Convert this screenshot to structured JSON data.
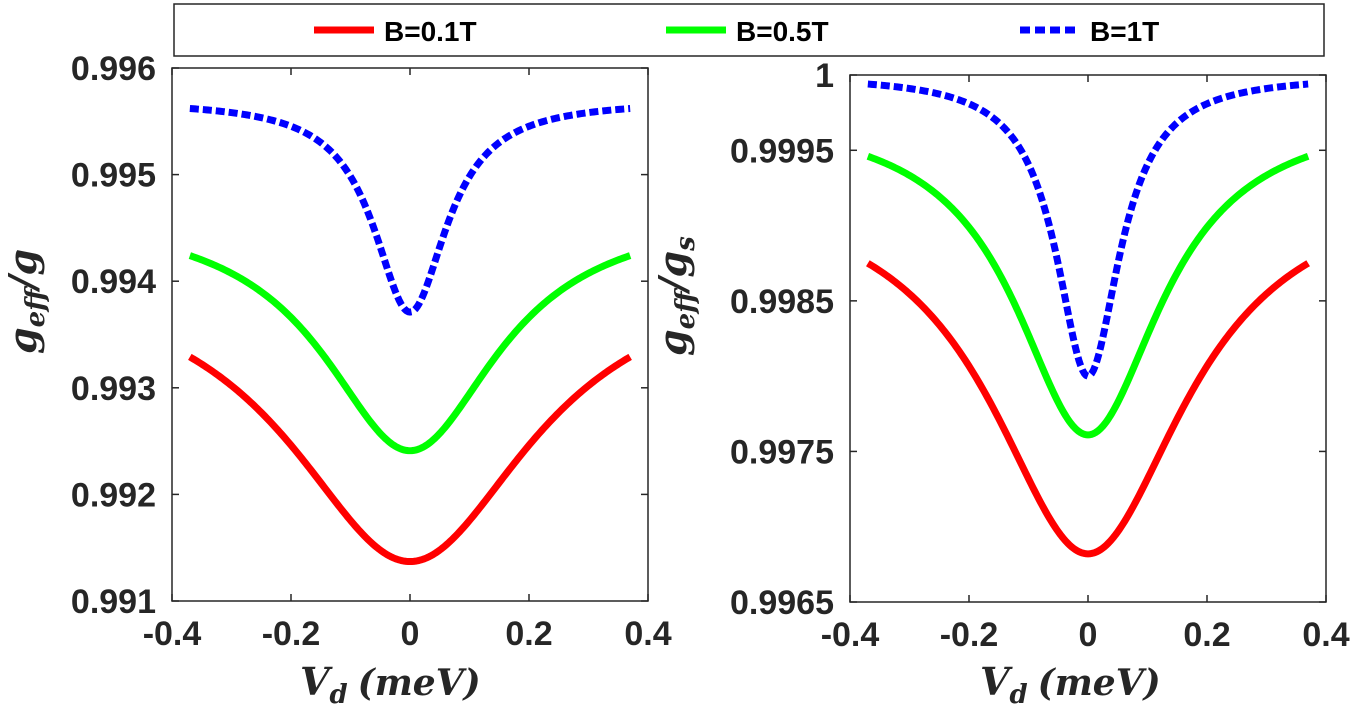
{
  "chart_data": [
    {
      "type": "line",
      "title": "",
      "xlabel": "V_d (meV)",
      "xlabel_main": "V",
      "xlabel_sub": "d",
      "xlabel_unit": "(meV)",
      "ylabel": "g_eff/g",
      "ylabel_main": "g",
      "ylabel_sub": "eff",
      "ylabel_tail": "/g",
      "ylabel_tail_sub": "",
      "xlim": [
        -0.4,
        0.4
      ],
      "ylim": [
        0.991,
        0.996
      ],
      "xticks": [
        -0.4,
        -0.2,
        0,
        0.2,
        0.4
      ],
      "xtick_labels": [
        "-0.4",
        "-0.2",
        "0",
        "0.2",
        "0.4"
      ],
      "yticks": [
        0.991,
        0.992,
        0.993,
        0.994,
        0.995,
        0.996
      ],
      "ytick_labels": [
        "0.991",
        "0.992",
        "0.993",
        "0.994",
        "0.995",
        "0.996"
      ],
      "series": [
        {
          "name": "B=0.1T",
          "color": "#ff0000",
          "style": "solid",
          "width": 0.25,
          "ymax": 0.99329,
          "ymin": 0.99137
        },
        {
          "name": "B=0.5T",
          "color": "#00ff00",
          "style": "solid",
          "width": 0.18,
          "ymax": 0.99424,
          "ymin": 0.99241
        },
        {
          "name": "B=1T",
          "color": "#0000ff",
          "style": "dashed",
          "width": 0.075,
          "ymax": 0.99562,
          "ymin": 0.99371
        }
      ]
    },
    {
      "type": "line",
      "title": "",
      "xlabel": "V_d (meV)",
      "xlabel_main": "V",
      "xlabel_sub": "d",
      "xlabel_unit": "(meV)",
      "ylabel": "g_eff/g_s",
      "ylabel_main": "g",
      "ylabel_sub": "eff",
      "ylabel_tail": "/g",
      "ylabel_tail_sub": "s",
      "xlim": [
        -0.4,
        0.4
      ],
      "ylim": [
        0.9965,
        1.0
      ],
      "xticks": [
        -0.4,
        -0.2,
        0,
        0.2,
        0.4
      ],
      "xtick_labels": [
        "-0.4",
        "-0.2",
        "0",
        "0.2",
        "0.4"
      ],
      "yticks": [
        0.9965,
        0.9975,
        0.9985,
        0.9995,
        1.0
      ],
      "ytick_labels": [
        "0.9965",
        "0.9975",
        "0.9985",
        "0.9995",
        "1"
      ],
      "series": [
        {
          "name": "B=0.1T",
          "color": "#ff0000",
          "style": "solid",
          "width": 0.2,
          "ymax": 0.99875,
          "ymin": 0.99682
        },
        {
          "name": "B=0.5T",
          "color": "#00ff00",
          "style": "solid",
          "width": 0.15,
          "ymax": 0.99946,
          "ymin": 0.99761
        },
        {
          "name": "B=1T",
          "color": "#0000ff",
          "style": "dashed",
          "width": 0.065,
          "ymax": 0.99994,
          "ymin": 0.998
        }
      ]
    }
  ],
  "legend": {
    "entries": [
      {
        "label": "B=0.1T",
        "color": "#ff0000",
        "style": "solid"
      },
      {
        "label": "B=0.5T",
        "color": "#00ff00",
        "style": "solid"
      },
      {
        "label": "B=1T",
        "color": "#0000ff",
        "style": "dashed"
      }
    ]
  }
}
